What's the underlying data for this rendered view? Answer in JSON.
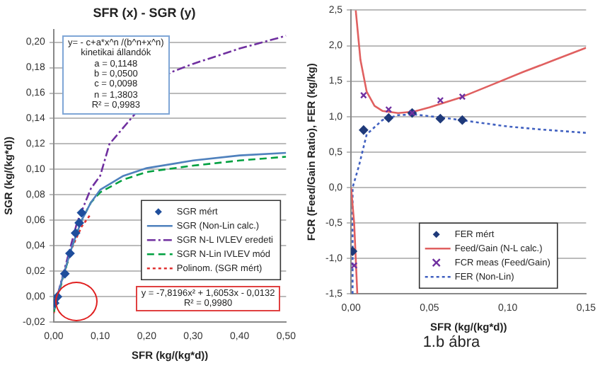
{
  "chart_data": [
    {
      "type": "scatter",
      "title": "SFR (x) - SGR (y)",
      "xlabel": "SFR (kg/(kg*d))",
      "ylabel": "SGR (kg/(kg*d))",
      "xlim": [
        0,
        0.5
      ],
      "xticks": [
        {
          "value": 0,
          "label": "0,00"
        },
        {
          "value": 0.1,
          "label": "0,10"
        },
        {
          "value": 0.2,
          "label": "0,20"
        },
        {
          "value": 0.3,
          "label": "0,30"
        },
        {
          "value": 0.4,
          "label": "0,40"
        },
        {
          "value": 0.5,
          "label": "0,50"
        }
      ],
      "ylim": [
        -0.02,
        0.21
      ],
      "yticks": [
        {
          "value": -0.02,
          "label": "-0,02"
        },
        {
          "value": 0,
          "label": "0,00"
        },
        {
          "value": 0.02,
          "label": "0,02"
        },
        {
          "value": 0.04,
          "label": "0,04"
        },
        {
          "value": 0.06,
          "label": "0,06"
        },
        {
          "value": 0.08,
          "label": "0,08"
        },
        {
          "value": 0.1,
          "label": "0,10"
        },
        {
          "value": 0.12,
          "label": "0,12"
        },
        {
          "value": 0.14,
          "label": "0,14"
        },
        {
          "value": 0.16,
          "label": "0,16"
        },
        {
          "value": 0.18,
          "label": "0,18"
        },
        {
          "value": 0.2,
          "label": "0,20"
        }
      ],
      "grid": "y",
      "legend": "bottom right",
      "series": [
        {
          "name": "SGR mért",
          "type": "scatter",
          "marker": "diamond",
          "color": "#1f4e9c",
          "x": [
            0.002,
            0.008,
            0.024,
            0.035,
            0.047,
            0.055,
            0.06
          ],
          "values": [
            -0.005,
            0.0,
            0.018,
            0.034,
            0.05,
            0.058,
            0.066
          ]
        },
        {
          "name": "SGR (Non-Lin calc.)",
          "type": "line",
          "marker": "none",
          "line_style": "solid",
          "color": "#4f81bd",
          "x": [
            0,
            0.02,
            0.04,
            0.06,
            0.08,
            0.1,
            0.15,
            0.2,
            0.3,
            0.4,
            0.5
          ],
          "values": [
            -0.01,
            0.016,
            0.04,
            0.06,
            0.074,
            0.084,
            0.095,
            0.101,
            0.107,
            0.111,
            0.113
          ]
        },
        {
          "name": "SGR N-L IVLEV eredeti",
          "type": "line",
          "marker": "none",
          "line_style": "dashdot",
          "color": "#7030a0",
          "x": [
            0,
            0.05,
            0.08,
            0.1,
            0.12,
            0.25,
            0.3,
            0.4,
            0.5
          ],
          "values": [
            -0.01,
            0.058,
            0.085,
            0.095,
            0.12,
            0.176,
            0.183,
            0.195,
            0.205
          ]
        },
        {
          "name": "SGR N-Lin IVLEV mód",
          "type": "line",
          "marker": "none",
          "line_style": "dashed",
          "color": "#00a040",
          "x": [
            0,
            0.02,
            0.04,
            0.06,
            0.08,
            0.1,
            0.15,
            0.2,
            0.3,
            0.4,
            0.5
          ],
          "values": [
            -0.012,
            0.015,
            0.04,
            0.06,
            0.074,
            0.082,
            0.092,
            0.098,
            0.103,
            0.107,
            0.11
          ]
        },
        {
          "name": "Polinom. (SGR mért)",
          "type": "line",
          "marker": "none",
          "line_style": "dotted",
          "color": "#e03030",
          "x": [
            0,
            0.02,
            0.04,
            0.06,
            0.08
          ],
          "values": [
            -0.013,
            0.016,
            0.039,
            0.055,
            0.065
          ]
        }
      ],
      "annotations": [
        "y= - c+a*x^n /(b^n+x^n)\nkinetikai állandók\na = 0,1148\nb = 0,0500\nc = 0,0098\nn = 1,3803\nR² = 0,9983",
        "y = -7,8196x² + 1,6053x - 0,0132\nR² = 0,9980"
      ]
    },
    {
      "type": "scatter",
      "xlabel": "SFR (kg/(kg*d))",
      "ylabel": "FCR (Feed/Gain Ratio), FER (kg/kg)",
      "xlim": [
        0,
        0.15
      ],
      "xticks": [
        {
          "value": 0,
          "label": "0,00"
        },
        {
          "value": 0.05,
          "label": "0,05"
        },
        {
          "value": 0.1,
          "label": "0,10"
        },
        {
          "value": 0.15,
          "label": "0,15"
        }
      ],
      "ylim": [
        -1.5,
        2.5
      ],
      "yticks": [
        {
          "value": -1.5,
          "label": "-1,5"
        },
        {
          "value": -1,
          "label": "-1,0"
        },
        {
          "value": -0.5,
          "label": "-0,5"
        },
        {
          "value": 0,
          "label": "0,0"
        },
        {
          "value": 0.5,
          "label": "0,5"
        },
        {
          "value": 1,
          "label": "1,0"
        },
        {
          "value": 1.5,
          "label": "1,5"
        },
        {
          "value": 2,
          "label": "2,0"
        },
        {
          "value": 2.5,
          "label": "2,5"
        }
      ],
      "grid": "y",
      "legend": "bottom",
      "series": [
        {
          "name": "FER mért",
          "type": "scatter",
          "marker": "diamond",
          "color": "#1f3a7a",
          "x": [
            0.001,
            0.008,
            0.024,
            0.039,
            0.057,
            0.071
          ],
          "values": [
            -0.9,
            0.81,
            0.98,
            1.05,
            0.97,
            0.95
          ]
        },
        {
          "name": "Feed/Gain (N-L calc.)",
          "type": "line",
          "marker": "none",
          "line_style": "solid",
          "color": "#e06060",
          "x": [
            0,
            0.002,
            0.003,
            0.004,
            null,
            0.003,
            0.006,
            0.01,
            0.015,
            0.02,
            0.03,
            0.04,
            0.05,
            0.07,
            0.09,
            0.11,
            0.13,
            0.15
          ],
          "values": [
            0.0,
            -0.5,
            -1.0,
            -1.5,
            null,
            2.5,
            1.8,
            1.35,
            1.15,
            1.08,
            1.05,
            1.07,
            1.13,
            1.27,
            1.45,
            1.63,
            1.8,
            1.97
          ]
        },
        {
          "name": "FCR meas (Feed/Gain)",
          "type": "scatter",
          "marker": "cross",
          "color": "#7030a0",
          "x": [
            0.002,
            0.008,
            0.024,
            0.039,
            0.057,
            0.071
          ],
          "values": [
            -1.1,
            1.3,
            1.1,
            1.05,
            1.23,
            1.28
          ]
        },
        {
          "name": "FER (Non-Lin)",
          "type": "line",
          "marker": "none",
          "line_style": "dotted",
          "color": "#4060c0",
          "x": [
            0.001,
            0.001,
            0.005,
            0.01,
            0.02,
            0.03,
            0.04,
            0.06,
            0.08,
            0.1,
            0.12,
            0.15
          ],
          "values": [
            -1.5,
            0.0,
            0.3,
            0.75,
            0.95,
            1.02,
            1.03,
            0.98,
            0.92,
            0.86,
            0.82,
            0.77
          ]
        }
      ],
      "annotations": [
        "1.b ábra"
      ]
    }
  ]
}
